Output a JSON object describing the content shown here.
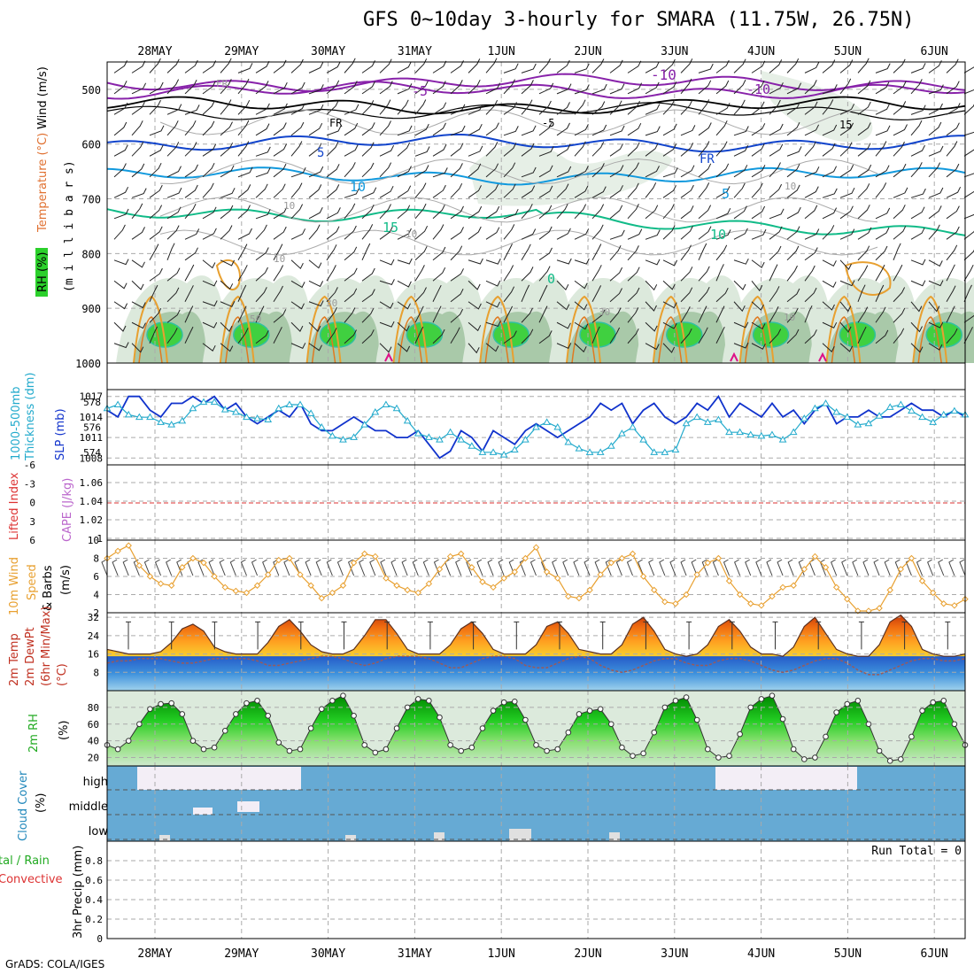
{
  "title": "GFS 0~10day 3-hourly for SMARA (11.75W, 26.75N)",
  "credit": "GrADS: COLA/IGES",
  "dates": [
    "28MAY",
    "29MAY",
    "30MAY",
    "31MAY",
    "1JUN",
    "2JUN",
    "3JUN",
    "4JUN",
    "5JUN",
    "6JUN"
  ],
  "colors": {
    "rh_green": "#22cc22",
    "temp_purple": "#8822aa",
    "temp_blue": "#1144cc",
    "temp_cyan": "#1199dd",
    "temp_teal": "#11bb88",
    "orange": "#e8a030",
    "slp": "#1133cc",
    "thickness": "#22aacc",
    "cloud": "#66aad4",
    "pink": "#dd1188"
  },
  "panels": [
    {
      "id": "upper-air",
      "ylabel_parts": [
        "RH (%)",
        "Temperature (°C)",
        "Wind (m/s)"
      ],
      "yunit": "(m i l l i b a r s)",
      "ticks": [
        "500",
        "600",
        "700",
        "800",
        "900",
        "1000"
      ],
      "contour_labels": [
        "-10",
        "-5",
        "FR",
        "5",
        "10",
        "15",
        "0",
        "-10",
        "-5",
        "FR",
        "5",
        "10",
        "15",
        "FR",
        "10",
        "10",
        "10",
        "10",
        "30",
        "50",
        "10",
        "30"
      ]
    },
    {
      "id": "slp-thickness",
      "ylabel_parts": [
        "1000-500mb",
        "Thickness (dm)",
        "SLP (mb)"
      ],
      "left_ticks": [
        "578",
        "576",
        "574"
      ],
      "right_ticks": [
        "1017",
        "1014",
        "1011",
        "1008"
      ]
    },
    {
      "id": "lifted-cape",
      "ylabel_parts": [
        "Lifted Index",
        "CAPE (J/kg)"
      ],
      "left_ticks": [
        "-6",
        "-3",
        "0",
        "3",
        "6"
      ],
      "right_ticks": [
        "1.06",
        "1.04",
        "1.02",
        "1"
      ]
    },
    {
      "id": "wind10m",
      "ylabel_parts": [
        "10m Wind",
        "Speed",
        "& Barbs",
        "(m/s)"
      ],
      "ticks": [
        "10",
        "8",
        "6",
        "4",
        "2"
      ]
    },
    {
      "id": "temp2m",
      "ylabel_parts": [
        "2m Temp",
        "2m DewPt",
        "(6hr Min/Max)",
        "(°C)"
      ],
      "ticks": [
        "32",
        "24",
        "16",
        "8"
      ]
    },
    {
      "id": "rh2m",
      "ylabel_parts": [
        "2m RH",
        "(%)"
      ],
      "ticks": [
        "80",
        "60",
        "40",
        "20"
      ]
    },
    {
      "id": "cloud",
      "ylabel_parts": [
        "Cloud Cover",
        "(%)"
      ],
      "ticks": [
        "high",
        "middle",
        "low"
      ]
    },
    {
      "id": "precip",
      "ylabel_parts": [
        "tal / Rain",
        "Convective",
        "3hr Precip (mm)"
      ],
      "ticks": [
        "0.8",
        "0.6",
        "0.4",
        "0.2",
        "0"
      ],
      "run_total": "Run Total = 0"
    }
  ],
  "chart_data": [
    {
      "type": "line",
      "title": "1000-500mb Thickness (dm) / SLP (mb)",
      "x_unit": "3-hourly steps from 27MAY 12Z",
      "series": [
        {
          "name": "SLP (mb)",
          "values": [
            1015,
            1014,
            1017,
            1017,
            1015,
            1014,
            1016,
            1016,
            1017,
            1016,
            1017,
            1015,
            1016,
            1014,
            1013,
            1014,
            1015,
            1014,
            1016,
            1013,
            1012,
            1012,
            1013,
            1014,
            1013,
            1012,
            1012,
            1011,
            1011,
            1012,
            1010,
            1008,
            1009,
            1012,
            1011,
            1009,
            1012,
            1011,
            1010,
            1012,
            1013,
            1012,
            1011,
            1012,
            1013,
            1014,
            1016,
            1015,
            1016,
            1013,
            1015,
            1016,
            1014,
            1013,
            1014,
            1016,
            1015,
            1017,
            1014,
            1016,
            1015,
            1014,
            1016,
            1014,
            1015,
            1013,
            1015,
            1016,
            1013,
            1014,
            1014,
            1015,
            1014,
            1014,
            1015,
            1016,
            1015,
            1015,
            1014,
            1015,
            1014
          ]
        },
        {
          "name": "Thickness (dm)",
          "values": [
            577.5,
            577.8,
            577.0,
            576.8,
            576.8,
            576.4,
            576.2,
            576.5,
            577.5,
            578.0,
            578.0,
            577.4,
            577.2,
            576.8,
            576.7,
            576.6,
            577.5,
            577.8,
            577.8,
            577.1,
            576.0,
            575.3,
            575.0,
            575.2,
            576.2,
            577.2,
            577.8,
            577.5,
            576.5,
            575.5,
            575.2,
            575.0,
            575.6,
            575.0,
            574.5,
            574.0,
            574.0,
            573.8,
            574.2,
            575.0,
            576.0,
            576.4,
            576.0,
            574.8,
            574.3,
            574.0,
            574.0,
            574.5,
            575.5,
            576.0,
            575.0,
            574.0,
            574.0,
            574.2,
            576.3,
            576.8,
            576.4,
            576.6,
            575.6,
            575.6,
            575.4,
            575.3,
            575.4,
            575.0,
            575.6,
            576.7,
            577.5,
            577.9,
            577.2,
            576.8,
            576.2,
            576.3,
            576.9,
            577.6,
            577.8,
            577.3,
            576.8,
            576.4,
            577.0,
            577.3,
            577.0
          ]
        }
      ],
      "ylim_left": [
        573,
        579
      ],
      "ylim_right": [
        1007,
        1018
      ]
    },
    {
      "type": "line",
      "title": "10m Wind Speed (m/s)",
      "series": [
        {
          "name": "Speed",
          "values": [
            8.0,
            8.8,
            9.4,
            7.2,
            6.0,
            5.2,
            5.0,
            7.0,
            8.0,
            7.5,
            6.0,
            4.8,
            4.4,
            4.2,
            5.0,
            6.2,
            7.8,
            8.0,
            6.2,
            5.0,
            3.6,
            4.2,
            5.0,
            7.5,
            8.5,
            8.2,
            5.8,
            5.0,
            4.5,
            4.2,
            5.2,
            6.8,
            8.2,
            8.5,
            7.0,
            5.4,
            4.8,
            5.8,
            6.5,
            8.0,
            9.2,
            6.5,
            5.8,
            3.8,
            3.6,
            4.5,
            6.2,
            7.5,
            8.0,
            8.5,
            6.0,
            4.5,
            3.2,
            3.0,
            4.0,
            6.2,
            7.5,
            8.0,
            5.5,
            4.0,
            3.0,
            2.8,
            3.8,
            4.8,
            5.0,
            6.8,
            8.2,
            7.0,
            4.8,
            3.5,
            2.2,
            2.2,
            2.5,
            4.5,
            6.8,
            8.0,
            5.5,
            4.2,
            3.0,
            2.8,
            3.5
          ]
        }
      ],
      "ylim": [
        2,
        10
      ]
    },
    {
      "type": "line",
      "title": "2m Temp / 2m DewPt (°C)",
      "series": [
        {
          "name": "2m Temp",
          "values": [
            18,
            17,
            16,
            16,
            16,
            17,
            21,
            27,
            29,
            26,
            19,
            17,
            16,
            16,
            16,
            21,
            28,
            31,
            26,
            20,
            17,
            16,
            16,
            18,
            24,
            31,
            31,
            25,
            18,
            16,
            16,
            16,
            20,
            27,
            30,
            25,
            18,
            16,
            16,
            16,
            20,
            28,
            30,
            25,
            18,
            17,
            16,
            16,
            20,
            29,
            32,
            26,
            18,
            16,
            15,
            16,
            20,
            28,
            31,
            26,
            19,
            16,
            16,
            15,
            19,
            28,
            32,
            25,
            18,
            16,
            15,
            15,
            20,
            30,
            33,
            28,
            18,
            16,
            15,
            15,
            16
          ]
        },
        {
          "name": "2m DewPt",
          "values": [
            12,
            13,
            13,
            14,
            14,
            14,
            13,
            12,
            12,
            13,
            14,
            14,
            14,
            14,
            13,
            11,
            11,
            12,
            13,
            14,
            15,
            15,
            14,
            12,
            11,
            12,
            14,
            15,
            15,
            15,
            14,
            12,
            10,
            10,
            12,
            14,
            15,
            15,
            14,
            11,
            10,
            10,
            12,
            14,
            15,
            14,
            11,
            9,
            8,
            9,
            11,
            13,
            14,
            14,
            12,
            11,
            11,
            13,
            14,
            14,
            13,
            11,
            9,
            8,
            9,
            11,
            13,
            14,
            14,
            12,
            9,
            7,
            7,
            9,
            11,
            13,
            14,
            14,
            13,
            13,
            14
          ]
        }
      ],
      "ylim": [
        0,
        34
      ]
    },
    {
      "type": "area",
      "title": "2m RH (%)",
      "series": [
        {
          "name": "2m RH",
          "values": [
            35,
            30,
            40,
            60,
            78,
            84,
            85,
            72,
            40,
            30,
            32,
            52,
            72,
            85,
            88,
            70,
            38,
            28,
            30,
            55,
            78,
            88,
            94,
            70,
            35,
            26,
            30,
            55,
            80,
            90,
            88,
            68,
            35,
            28,
            32,
            55,
            76,
            86,
            87,
            65,
            35,
            28,
            30,
            50,
            72,
            76,
            78,
            60,
            32,
            22,
            25,
            50,
            80,
            88,
            92,
            65,
            30,
            20,
            22,
            48,
            80,
            90,
            94,
            66,
            30,
            18,
            20,
            45,
            74,
            84,
            88,
            60,
            28,
            16,
            18,
            45,
            76,
            86,
            88,
            60,
            35
          ]
        }
      ],
      "ylim": [
        10,
        100
      ]
    },
    {
      "type": "line",
      "title": "3hr Precip (mm)",
      "series": [
        {
          "name": "Run Total = 0",
          "values": []
        }
      ],
      "ylim": [
        0,
        1
      ]
    }
  ]
}
